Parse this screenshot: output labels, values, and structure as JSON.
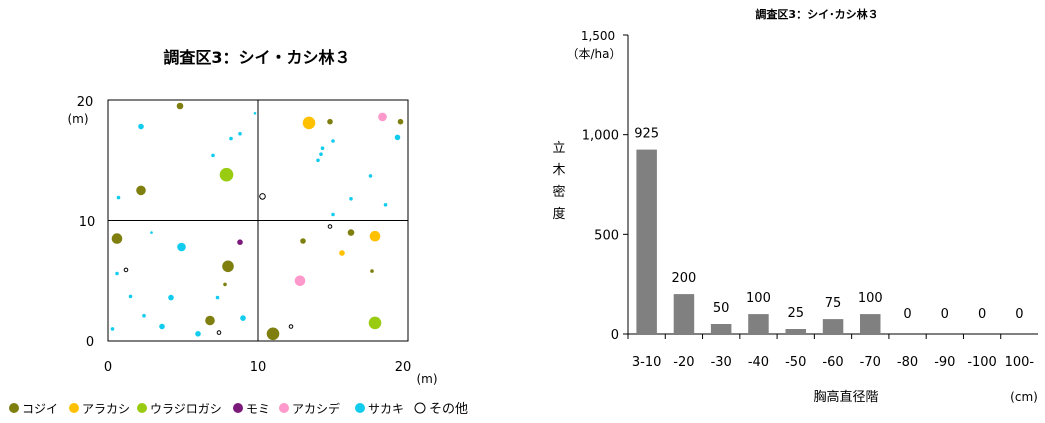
{
  "chart_data": [
    {
      "type": "scatter",
      "title": "調査区3：シイ・カシ林３",
      "xlabel": "(m)",
      "ylabel": "(m)",
      "xlim": [
        0,
        20
      ],
      "ylim": [
        0,
        20
      ],
      "xticks": [
        "0",
        "10",
        "20"
      ],
      "yticks": [
        "0",
        "10",
        "20"
      ],
      "quadrant_lines": true,
      "legend_position": "bottom",
      "legend": [
        {
          "key": "kojii",
          "label": "コジイ",
          "color": "#7f7f10"
        },
        {
          "key": "arakashi",
          "label": "アラカシ",
          "color": "#ffc000"
        },
        {
          "key": "urajirogashi",
          "label": "ウラジロガシ",
          "color": "#99cc11"
        },
        {
          "key": "momi",
          "label": "モミ",
          "color": "#7b1a7b"
        },
        {
          "key": "akashide",
          "label": "アカシデ",
          "color": "#ff99cc"
        },
        {
          "key": "sakaki",
          "label": "サカキ",
          "color": "#11ccee"
        },
        {
          "key": "other",
          "label": "その他",
          "color": "#ffffff"
        }
      ],
      "points": [
        {
          "s": "kojii",
          "x": 4.8,
          "y": 19.5,
          "d": 6
        },
        {
          "s": "kojii",
          "x": 2.2,
          "y": 12.5,
          "d": 9
        },
        {
          "s": "kojii",
          "x": 0.6,
          "y": 8.5,
          "d": 10
        },
        {
          "s": "kojii",
          "x": 8.0,
          "y": 6.2,
          "d": 11
        },
        {
          "s": "kojii",
          "x": 7.8,
          "y": 4.7,
          "d": 3
        },
        {
          "s": "kojii",
          "x": 6.8,
          "y": 1.7,
          "d": 9
        },
        {
          "s": "kojii",
          "x": 11.0,
          "y": 0.6,
          "d": 12
        },
        {
          "s": "kojii",
          "x": 14.8,
          "y": 18.2,
          "d": 5
        },
        {
          "s": "kojii",
          "x": 19.5,
          "y": 18.2,
          "d": 5
        },
        {
          "s": "kojii",
          "x": 16.2,
          "y": 9.0,
          "d": 6
        },
        {
          "s": "kojii",
          "x": 13.0,
          "y": 8.3,
          "d": 5
        },
        {
          "s": "kojii",
          "x": 17.6,
          "y": 5.8,
          "d": 3
        },
        {
          "s": "arakashi",
          "x": 13.4,
          "y": 18.1,
          "d": 12
        },
        {
          "s": "arakashi",
          "x": 17.8,
          "y": 8.7,
          "d": 10
        },
        {
          "s": "arakashi",
          "x": 15.6,
          "y": 7.3,
          "d": 5
        },
        {
          "s": "urajirogashi",
          "x": 7.9,
          "y": 13.8,
          "d": 13
        },
        {
          "s": "urajirogashi",
          "x": 17.8,
          "y": 1.5,
          "d": 12
        },
        {
          "s": "momi",
          "x": 8.8,
          "y": 8.2,
          "d": 5
        },
        {
          "s": "akashide",
          "x": 18.3,
          "y": 18.6,
          "d": 8
        },
        {
          "s": "akashide",
          "x": 12.8,
          "y": 5.0,
          "d": 10
        },
        {
          "s": "sakaki",
          "x": 2.2,
          "y": 17.8,
          "d": 5
        },
        {
          "s": "sakaki",
          "x": 7.0,
          "y": 15.4,
          "d": 3
        },
        {
          "s": "sakaki",
          "x": 8.2,
          "y": 16.8,
          "d": 3
        },
        {
          "s": "sakaki",
          "x": 8.8,
          "y": 17.2,
          "d": 3
        },
        {
          "s": "sakaki",
          "x": 0.7,
          "y": 11.9,
          "d": 3
        },
        {
          "s": "sakaki",
          "x": 9.8,
          "y": 18.9,
          "d": 2
        },
        {
          "s": "sakaki",
          "x": 4.9,
          "y": 7.8,
          "d": 8
        },
        {
          "s": "sakaki",
          "x": 2.9,
          "y": 9.0,
          "d": 2
        },
        {
          "s": "sakaki",
          "x": 0.6,
          "y": 5.6,
          "d": 3
        },
        {
          "s": "sakaki",
          "x": 1.5,
          "y": 3.7,
          "d": 3
        },
        {
          "s": "sakaki",
          "x": 4.2,
          "y": 3.6,
          "d": 5
        },
        {
          "s": "sakaki",
          "x": 7.3,
          "y": 3.6,
          "d": 3
        },
        {
          "s": "sakaki",
          "x": 2.4,
          "y": 2.1,
          "d": 3
        },
        {
          "s": "sakaki",
          "x": 3.6,
          "y": 1.2,
          "d": 5
        },
        {
          "s": "sakaki",
          "x": 0.3,
          "y": 1.0,
          "d": 3
        },
        {
          "s": "sakaki",
          "x": 6.0,
          "y": 0.6,
          "d": 5
        },
        {
          "s": "sakaki",
          "x": 9.0,
          "y": 1.9,
          "d": 5
        },
        {
          "s": "sakaki",
          "x": 14.3,
          "y": 16.0,
          "d": 3
        },
        {
          "s": "sakaki",
          "x": 14.2,
          "y": 15.5,
          "d": 3
        },
        {
          "s": "sakaki",
          "x": 14.0,
          "y": 15.0,
          "d": 3
        },
        {
          "s": "sakaki",
          "x": 15.0,
          "y": 16.6,
          "d": 3
        },
        {
          "s": "sakaki",
          "x": 19.3,
          "y": 16.9,
          "d": 5
        },
        {
          "s": "sakaki",
          "x": 17.5,
          "y": 13.7,
          "d": 3
        },
        {
          "s": "sakaki",
          "x": 16.2,
          "y": 11.8,
          "d": 3
        },
        {
          "s": "sakaki",
          "x": 18.5,
          "y": 11.3,
          "d": 3
        },
        {
          "s": "sakaki",
          "x": 15.0,
          "y": 10.5,
          "d": 3
        },
        {
          "s": "other",
          "x": 10.3,
          "y": 12.0,
          "d": 5
        },
        {
          "s": "other",
          "x": 1.2,
          "y": 5.9,
          "d": 3
        },
        {
          "s": "other",
          "x": 14.8,
          "y": 9.5,
          "d": 3
        },
        {
          "s": "other",
          "x": 7.4,
          "y": 0.7,
          "d": 3
        },
        {
          "s": "other",
          "x": 12.2,
          "y": 1.2,
          "d": 3
        }
      ]
    },
    {
      "type": "bar",
      "title": "調査区3：シイ･カシ林３",
      "ylabel_lines": [
        "1,500",
        "（本/ha）"
      ],
      "ylabel": "立木密度",
      "xlabel": "胸高直径階",
      "xunit": "(cm)",
      "ylim": [
        0,
        1500
      ],
      "yticks": [
        0,
        500,
        1000,
        1500
      ],
      "ytick_labels": [
        "0",
        "500",
        "1,000",
        ""
      ],
      "grid": false,
      "bar_color": "#808080",
      "categories": [
        "3-10",
        "-20",
        "-30",
        "-40",
        "-50",
        "-60",
        "-70",
        "-80",
        "-90",
        "-100",
        "100-"
      ],
      "values": [
        925,
        200,
        50,
        100,
        25,
        75,
        100,
        0,
        0,
        0,
        0
      ],
      "data_labels": [
        "925",
        "200",
        "50",
        "100",
        "25",
        "75",
        "100",
        "0",
        "0",
        "0",
        "0"
      ]
    }
  ]
}
